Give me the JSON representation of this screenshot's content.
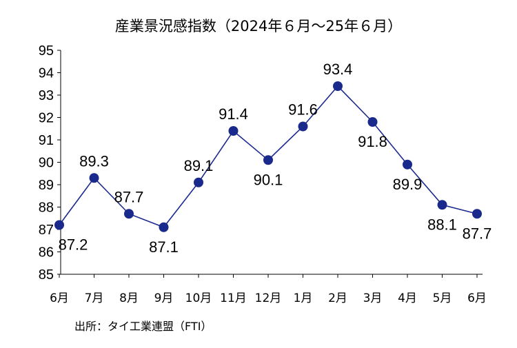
{
  "chart_data": {
    "type": "line",
    "title": "産業景況感指数（2024年６月～25年６月）",
    "categories": [
      "6月",
      "7月",
      "8月",
      "9月",
      "10月",
      "11月",
      "12月",
      "1月",
      "2月",
      "3月",
      "4月",
      "5月",
      "6月"
    ],
    "series": [
      {
        "values": [
          87.2,
          89.3,
          87.7,
          87.1,
          89.1,
          91.4,
          90.1,
          91.6,
          93.4,
          91.8,
          89.9,
          88.1,
          87.7
        ],
        "color": "#1a2a8c"
      }
    ],
    "data_labels": [
      "87.2",
      "89.3",
      "87.7",
      "87.1",
      "89.1",
      "91.4",
      "90.1",
      "91.6",
      "93.4",
      "91.8",
      "89.9",
      "88.1",
      "87.7"
    ],
    "y_ticks": [
      "85",
      "86",
      "87",
      "88",
      "89",
      "90",
      "91",
      "92",
      "93",
      "94",
      "95"
    ],
    "ylim": [
      85,
      95
    ],
    "grid": false,
    "legend": "none",
    "source": "出所：タイ工業連盟（FTI）"
  }
}
